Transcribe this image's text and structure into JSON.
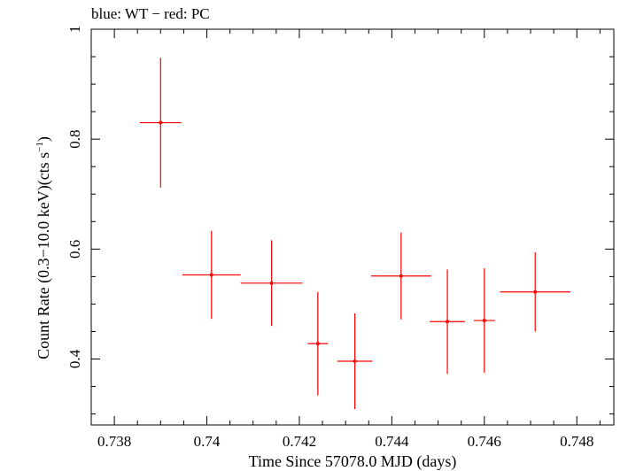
{
  "chart_data": {
    "type": "scatter",
    "title": "blue: WT − red: PC",
    "xlabel": "Time Since 57078.0 MJD (days)",
    "ylabel_main": "Count Rate (0.3−10.0 keV)(cts s",
    "ylabel_sup": "−1",
    "ylabel_end": ")",
    "xlim": [
      0.7375,
      0.7488
    ],
    "ylim": [
      0.28,
      1.0
    ],
    "grid": false,
    "x_ticks": [
      "0.738",
      "0.74",
      "0.742",
      "0.744",
      "0.746",
      "0.748"
    ],
    "y_ticks": [
      "0.4",
      "0.6",
      "0.8",
      "1"
    ],
    "series": [
      {
        "color": "#ff0000",
        "points": [
          {
            "x": 0.739,
            "y": 0.83,
            "xerr": 0.00045,
            "yerr": 0.118
          },
          {
            "x": 0.7401,
            "y": 0.553,
            "xerr": 0.00063,
            "yerr": 0.08
          },
          {
            "x": 0.7414,
            "y": 0.538,
            "xerr": 0.00067,
            "yerr": 0.078
          },
          {
            "x": 0.7424,
            "y": 0.428,
            "xerr": 0.00022,
            "yerr": 0.094
          },
          {
            "x": 0.7432,
            "y": 0.396,
            "xerr": 0.00038,
            "yerr": 0.087
          },
          {
            "x": 0.7442,
            "y": 0.551,
            "xerr": 0.00065,
            "yerr": 0.079
          },
          {
            "x": 0.7452,
            "y": 0.468,
            "xerr": 0.00038,
            "yerr": 0.095
          },
          {
            "x": 0.746,
            "y": 0.47,
            "xerr": 0.00023,
            "yerr": 0.095
          },
          {
            "x": 0.7471,
            "y": 0.522,
            "xerr": 0.00076,
            "yerr": 0.072
          }
        ]
      }
    ]
  }
}
